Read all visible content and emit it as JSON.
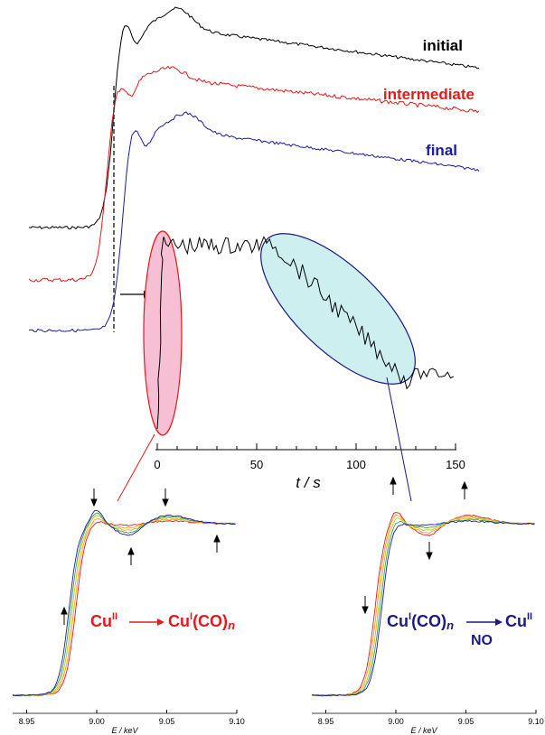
{
  "colors": {
    "initial": "#000000",
    "intermediate": "#e41a1a",
    "final": "#1a1aa8",
    "red_accent": "#e41a1a",
    "blue_accent": "#1a1a80",
    "pink_fill": "#f7bfd3",
    "cyan_fill": "#cdeff0"
  },
  "labels": {
    "initial": "initial",
    "intermediate": "intermediate",
    "final": "final"
  },
  "reactions": {
    "left": {
      "from": "Cu",
      "from_sup": "II",
      "to": "Cu",
      "to_sup": "I",
      "to_suffix": "(CO)",
      "to_sub": "n"
    },
    "right": {
      "from": "Cu",
      "from_sup": "I",
      "from_suffix": "(CO)",
      "from_sub": "n",
      "to": "Cu",
      "to_sup": "II",
      "reagent": "NO"
    }
  },
  "chart_data": [
    {
      "type": "line",
      "panel": "kinetic",
      "xlabel": "t / s",
      "xticks": [
        0,
        50,
        100,
        150
      ],
      "xlim": [
        0,
        150
      ]
    },
    {
      "type": "line",
      "panel": "xanes-left",
      "xlabel": "E / keV",
      "xticks": [
        "8.95",
        "9.00",
        "9.05",
        "9.10"
      ],
      "xlim": [
        8.94,
        9.1
      ]
    },
    {
      "type": "line",
      "panel": "xanes-right",
      "xlabel": "E / keV",
      "xticks": [
        "8.95",
        "9.00",
        "9.05",
        "9.10"
      ],
      "xlim": [
        8.94,
        9.1
      ]
    }
  ]
}
